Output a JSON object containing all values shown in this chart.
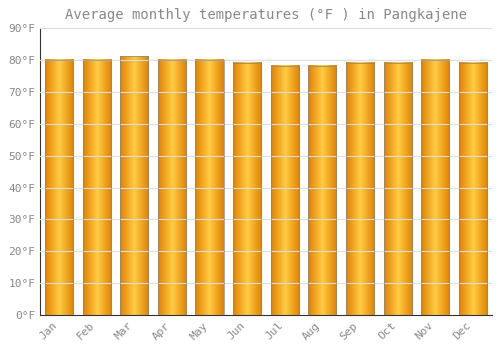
{
  "title": "Average monthly temperatures (°F ) in Pangkajene",
  "months": [
    "Jan",
    "Feb",
    "Mar",
    "Apr",
    "May",
    "Jun",
    "Jul",
    "Aug",
    "Sep",
    "Oct",
    "Nov",
    "Dec"
  ],
  "values": [
    80,
    80,
    81,
    80,
    80,
    79,
    78,
    78,
    79,
    79,
    80,
    79
  ],
  "bar_color_center": "#FFCC44",
  "bar_color_edge": "#E08000",
  "background_color": "#FFFFFF",
  "plot_bg_color": "#FFFFFF",
  "grid_color": "#DDDDDD",
  "border_color": "#888888",
  "text_color": "#888888",
  "ylim": [
    0,
    90
  ],
  "yticks": [
    0,
    10,
    20,
    30,
    40,
    50,
    60,
    70,
    80,
    90
  ],
  "ytick_labels": [
    "0°F",
    "10°F",
    "20°F",
    "30°F",
    "40°F",
    "50°F",
    "60°F",
    "70°F",
    "80°F",
    "90°F"
  ],
  "title_fontsize": 10,
  "tick_fontsize": 8,
  "bar_width": 0.75
}
